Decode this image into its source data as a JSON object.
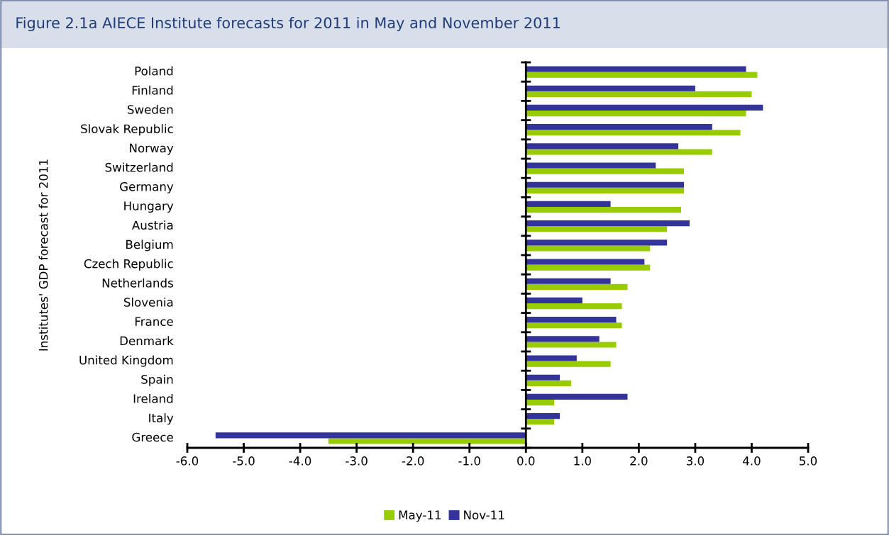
{
  "chart_data": {
    "type": "bar",
    "orientation": "horizontal",
    "title": "Figure 2.1a AIECE Institute forecasts for 2011 in May and November 2011",
    "ylabel": "Institutes' GDP forecast for 2011",
    "categories": [
      "Poland",
      "Finland",
      "Sweden",
      "Slovak Republic",
      "Norway",
      "Switzerland",
      "Germany",
      "Hungary",
      "Austria",
      "Belgium",
      "Czech Republic",
      "Netherlands",
      "Slovenia",
      "France",
      "Denmark",
      "United Kingdom",
      "Spain",
      "Ireland",
      "Italy",
      "Greece"
    ],
    "series": [
      {
        "name": "May-11",
        "color": "#99cc00",
        "values": [
          4.1,
          4.0,
          3.9,
          3.8,
          3.3,
          2.8,
          2.8,
          2.75,
          2.5,
          2.2,
          2.2,
          1.8,
          1.7,
          1.7,
          1.6,
          1.5,
          0.8,
          0.5,
          0.5,
          -3.5
        ]
      },
      {
        "name": "Nov-11",
        "color": "#333399",
        "values": [
          3.9,
          3.0,
          4.2,
          3.3,
          2.7,
          2.3,
          2.8,
          1.5,
          2.9,
          2.5,
          2.1,
          1.5,
          1.0,
          1.6,
          1.3,
          0.9,
          0.6,
          1.8,
          0.6,
          -5.5
        ]
      }
    ],
    "xlim": [
      -6,
      5
    ],
    "xticks": [
      {
        "value": -6,
        "label": "-6.0"
      },
      {
        "value": -5,
        "label": "-5.0"
      },
      {
        "value": -4,
        "label": "-4.0"
      },
      {
        "value": -3,
        "label": "-3.0"
      },
      {
        "value": -2,
        "label": "-2.0"
      },
      {
        "value": -1,
        "label": "-1.0"
      },
      {
        "value": 0,
        "label": "0.0"
      },
      {
        "value": 1,
        "label": "1.0"
      },
      {
        "value": 2,
        "label": "2.0"
      },
      {
        "value": 3,
        "label": "3.0"
      },
      {
        "value": 4,
        "label": "4.0"
      },
      {
        "value": 5,
        "label": "5.0"
      }
    ],
    "legend": "bottom"
  }
}
